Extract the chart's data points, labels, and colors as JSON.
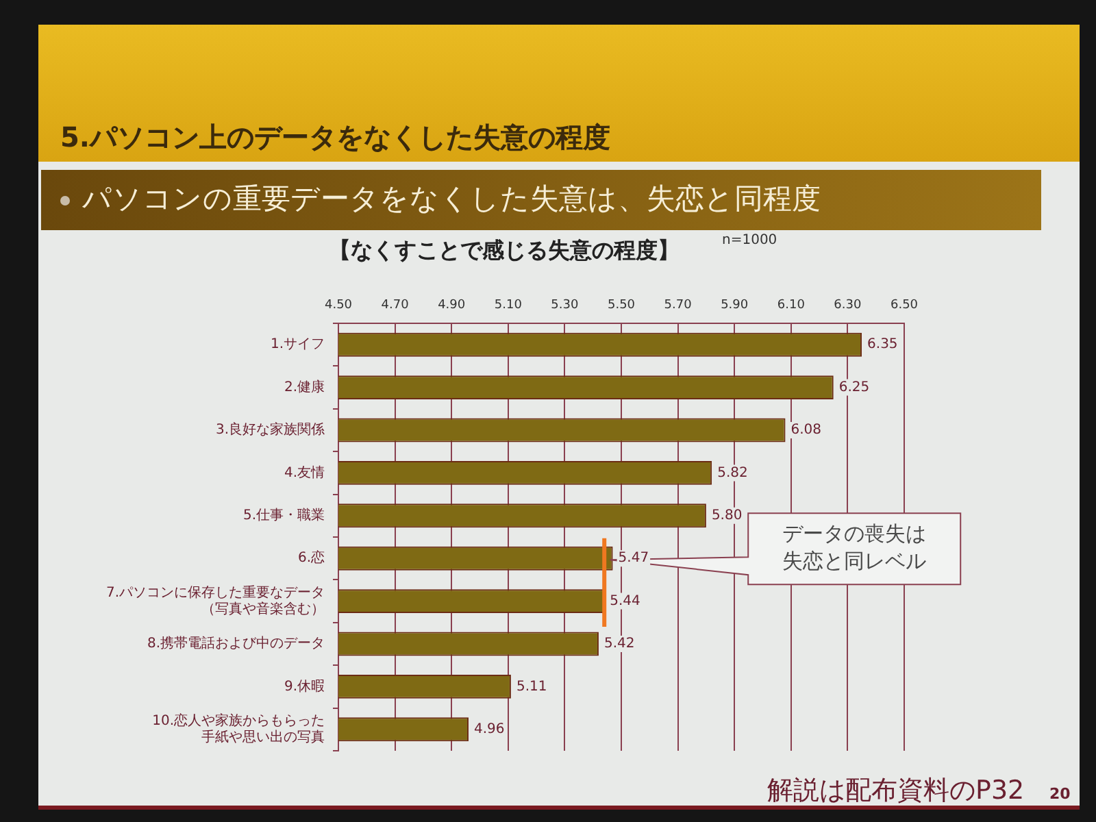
{
  "chart_data": {
    "type": "bar",
    "orientation": "horizontal",
    "title": "5.パソコン上のデータをなくした失意の程度",
    "subtitle": "パソコンの重要データをなくした失意は、失恋と同程度",
    "categories": [
      "1.サイフ",
      "2.健康",
      "3.良好な家族関係",
      "4.友情",
      "5.仕事・職業",
      "6.恋",
      "7.パソコンに保存した重要なデータ（写真や音楽含む）",
      "8.携帯電話および中のデータ",
      "9.休暇",
      "10.恋人や家族からもらった手紙や思い出の写真"
    ],
    "values": [
      6.35,
      6.25,
      6.08,
      5.82,
      5.8,
      5.47,
      5.44,
      5.42,
      5.11,
      4.96
    ],
    "value_labels": [
      "6.35",
      "6.25",
      "6.08",
      "5.82",
      "5.80",
      "5.47",
      "5.44",
      "5.42",
      "5.11",
      "4.96"
    ],
    "color": "#7f6a14",
    "xlim": [
      4.5,
      6.5
    ],
    "xticks": [
      {
        "value": 4.5,
        "label": "4.50"
      },
      {
        "value": 4.7,
        "label": "4.70"
      },
      {
        "value": 4.9,
        "label": "4.90"
      },
      {
        "value": 5.1,
        "label": "5.10"
      },
      {
        "value": 5.3,
        "label": "5.30"
      },
      {
        "value": 5.5,
        "label": "5.50"
      },
      {
        "value": 5.7,
        "label": "5.70"
      },
      {
        "value": 5.9,
        "label": "5.90"
      },
      {
        "value": 6.1,
        "label": "6.10"
      },
      {
        "value": 6.3,
        "label": "6.30"
      },
      {
        "value": 6.5,
        "label": "6.50"
      }
    ],
    "grid": "x",
    "ref_lines": [
      {
        "axis": "x",
        "value": 5.44,
        "color": "#f07820"
      }
    ],
    "annotations": [
      "【なくすことで感じる失意の程度】",
      "n=1000",
      "データの喪失は失恋と同レベル",
      "解説は配布資料のP32",
      "20"
    ]
  }
}
